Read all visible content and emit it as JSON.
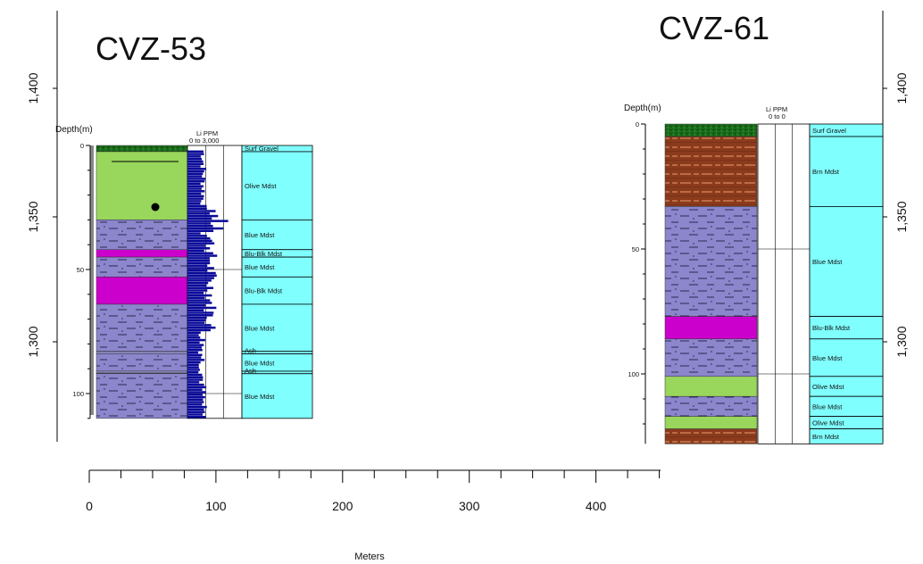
{
  "well_left": {
    "title": "CVZ-53",
    "depth_header": "Depth(m)",
    "li_header": "Li PPM",
    "li_range": "0 to 3,000",
    "depth_ticks": [
      "0",
      "50",
      "100"
    ],
    "units": [
      {
        "label": "Surf Gravel",
        "top": 0,
        "bottom": 2.5
      },
      {
        "label": "Olive Mdst",
        "top": 2.5,
        "bottom": 30
      },
      {
        "label": "Blue Mdst",
        "top": 30,
        "bottom": 42
      },
      {
        "label": "Blu-Blk Mdst",
        "top": 42,
        "bottom": 45
      },
      {
        "label": "Blue Mdst",
        "top": 45,
        "bottom": 53
      },
      {
        "label": "Blu-Blk Mdst",
        "top": 53,
        "bottom": 64
      },
      {
        "label": "Blue Mdst",
        "top": 64,
        "bottom": 83
      },
      {
        "label": "Ash",
        "top": 83,
        "bottom": 84
      },
      {
        "label": "Blue Mdst",
        "top": 84,
        "bottom": 91
      },
      {
        "label": "Ash",
        "top": 91,
        "bottom": 92
      },
      {
        "label": "Blue Mdst",
        "top": 92,
        "bottom": 110
      }
    ]
  },
  "well_right": {
    "title": "CVZ-61",
    "depth_header": "Depth(m)",
    "li_header": "Li PPM",
    "li_range": "0 to 0",
    "depth_ticks": [
      "0",
      "50",
      "100"
    ],
    "units": [
      {
        "label": "Surf Gravel",
        "top": 0,
        "bottom": 5
      },
      {
        "label": "Brn Mdst",
        "top": 5,
        "bottom": 33
      },
      {
        "label": "Blue Mdst",
        "top": 33,
        "bottom": 77
      },
      {
        "label": "Blu-Blk Mdst",
        "top": 77,
        "bottom": 86
      },
      {
        "label": "Blue Mdst",
        "top": 86,
        "bottom": 101
      },
      {
        "label": "Olive Mdst",
        "top": 101,
        "bottom": 109
      },
      {
        "label": "Blue Mdst",
        "top": 109,
        "bottom": 117
      },
      {
        "label": "Olive Mdst",
        "top": 117,
        "bottom": 122
      },
      {
        "label": "Brn Mdst",
        "top": 122,
        "bottom": 128
      }
    ]
  },
  "elevation_axis": {
    "ticks": [
      "1,400",
      "1,350",
      "1,300"
    ]
  },
  "distance_axis": {
    "label": "Meters",
    "ticks": [
      "0",
      "100",
      "200",
      "300",
      "400"
    ]
  },
  "colors": {
    "surf_gravel": "#1a6b1a",
    "olive": "#99d65c",
    "blue_mdst": "#8c86cc",
    "blu_blk": "#cc00cc",
    "brown": "#8b3a1c",
    "ash": "#9a96d8",
    "label_fill": "#80ffff",
    "li_bar": "#0a0a99"
  }
}
